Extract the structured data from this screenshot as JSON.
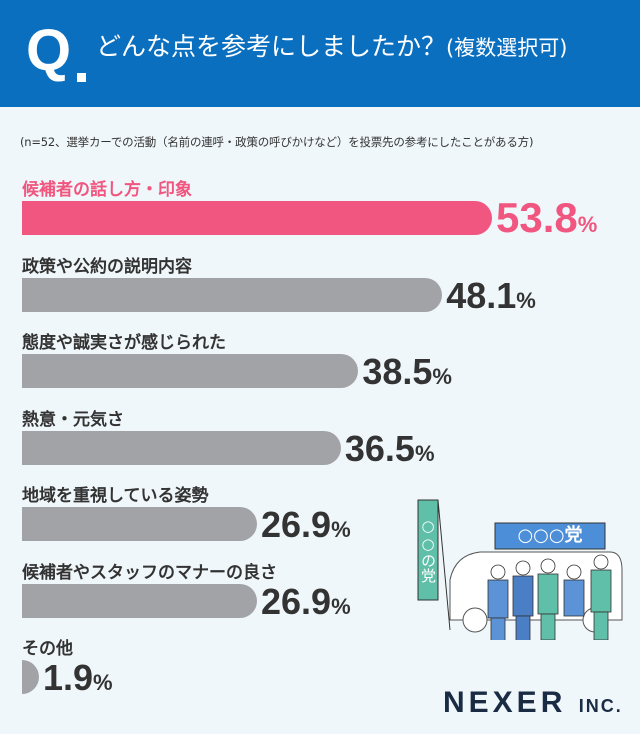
{
  "chart_data": {
    "type": "bar",
    "orientation": "horizontal",
    "title": "どんな点を参考にしましたか？",
    "title_suffix": "(複数選択可)",
    "q_mark": "Q",
    "subtitle": "(n=52、選挙カーでの活動（名前の連呼・政策の呼びかけなど）を投票先の参考にしたことがある方)",
    "unit": "%",
    "categories": [
      "候補者の話し方・印象",
      "政策や公約の説明内容",
      "態度や誠実さが感じられた",
      "熱意・元気さ",
      "地域を重視している姿勢",
      "候補者やスタッフのマナーの良さ",
      "その他"
    ],
    "values": [
      53.8,
      48.1,
      38.5,
      36.5,
      26.9,
      26.9,
      1.9
    ],
    "value_labels": [
      "53.8",
      "48.1",
      "38.5",
      "36.5",
      "26.9",
      "26.9",
      "1.9"
    ],
    "highlight_color": "#f0567f",
    "bar_color": "#a2a3a7",
    "header_color": "#0b6fc0"
  },
  "illustration": {
    "banner_text": "○○の党",
    "car_sign_text": "○○○党"
  },
  "logo": {
    "main": "NEXER",
    "suffix": "INC."
  }
}
